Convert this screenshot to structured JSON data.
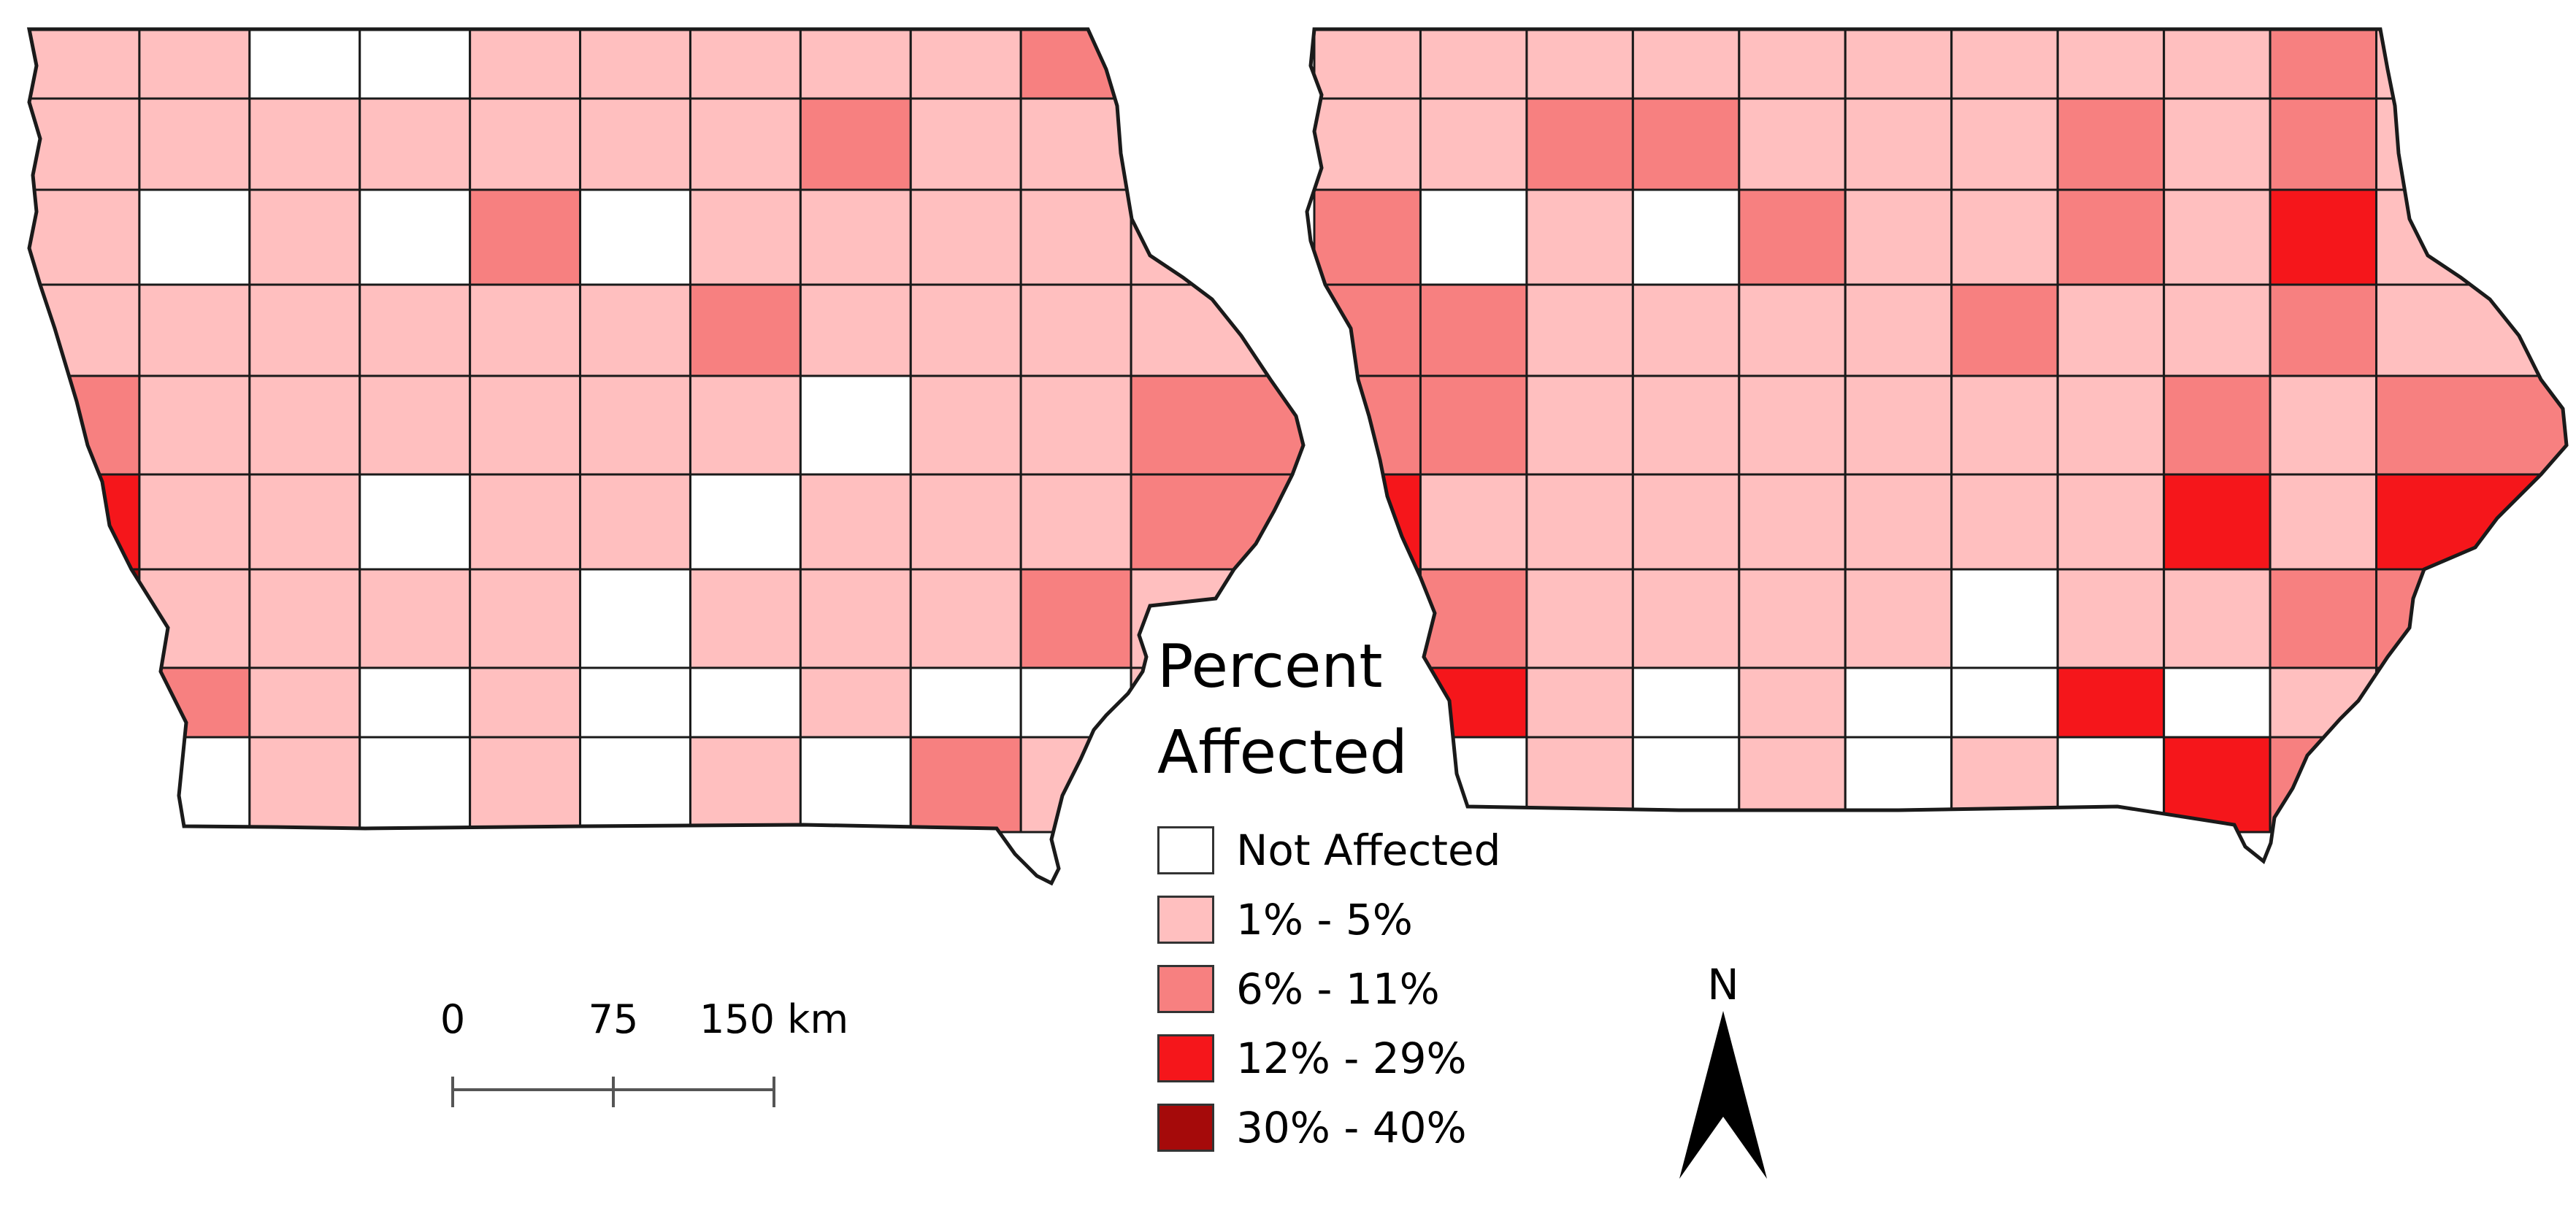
{
  "legend": {
    "title": "Percent\nAffected",
    "items": [
      {
        "label": "Not Affected",
        "color": "#ffffff"
      },
      {
        "label": "1% - 5%",
        "color": "#ffbfbf"
      },
      {
        "label": "6% - 11%",
        "color": "#f78080"
      },
      {
        "label": "12% - 29%",
        "color": "#f5161b"
      },
      {
        "label": "30% - 40%",
        "color": "#a50a0a"
      }
    ]
  },
  "scale_bar": {
    "labels": [
      "0",
      "75",
      "150 km"
    ]
  },
  "north_arrow": {
    "label": "N"
  },
  "maps": [
    {
      "name": "left-map",
      "county_categories": [
        [
          1,
          1,
          0,
          0,
          1,
          1,
          1,
          1,
          1,
          2,
          0
        ],
        [
          1,
          1,
          1,
          1,
          1,
          1,
          1,
          2,
          1,
          1,
          1
        ],
        [
          1,
          0,
          1,
          0,
          2,
          0,
          1,
          1,
          1,
          1,
          1
        ],
        [
          1,
          1,
          1,
          1,
          1,
          1,
          2,
          1,
          1,
          1,
          1
        ],
        [
          2,
          1,
          1,
          1,
          1,
          1,
          1,
          0,
          1,
          1,
          2
        ],
        [
          3,
          1,
          1,
          0,
          1,
          1,
          0,
          1,
          1,
          1,
          2
        ],
        [
          4,
          1,
          1,
          1,
          1,
          0,
          1,
          1,
          1,
          2,
          1
        ],
        [
          2,
          2,
          1,
          0,
          1,
          0,
          0,
          1,
          0,
          0,
          1
        ],
        [
          3,
          0,
          1,
          0,
          1,
          0,
          1,
          0,
          2,
          1,
          1
        ]
      ]
    },
    {
      "name": "right-map",
      "county_categories": [
        [
          1,
          1,
          1,
          1,
          1,
          1,
          1,
          1,
          1,
          2,
          1
        ],
        [
          1,
          1,
          2,
          2,
          1,
          1,
          1,
          2,
          1,
          2,
          1
        ],
        [
          2,
          0,
          1,
          0,
          2,
          1,
          1,
          2,
          1,
          3,
          1
        ],
        [
          2,
          2,
          1,
          1,
          1,
          1,
          2,
          1,
          1,
          2,
          1
        ],
        [
          2,
          2,
          1,
          1,
          1,
          1,
          1,
          1,
          2,
          1,
          2
        ],
        [
          3,
          1,
          1,
          1,
          1,
          1,
          1,
          1,
          3,
          1,
          3
        ],
        [
          4,
          2,
          1,
          1,
          1,
          1,
          0,
          1,
          1,
          2,
          2
        ],
        [
          2,
          3,
          1,
          0,
          1,
          0,
          0,
          3,
          0,
          1,
          1
        ],
        [
          3,
          0,
          1,
          0,
          1,
          0,
          1,
          0,
          3,
          2,
          1
        ]
      ]
    }
  ]
}
